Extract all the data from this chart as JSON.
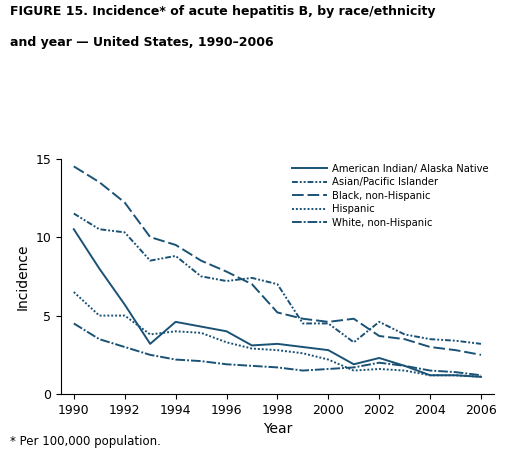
{
  "title_line1": "FIGURE 15. Incidence* of acute hepatitis B, by race/ethnicity",
  "title_line2": "and year — United States, 1990–2006",
  "footnote": "* Per 100,000 population.",
  "xlabel": "Year",
  "ylabel": "Incidence",
  "ylim": [
    0,
    15
  ],
  "yticks": [
    0,
    5,
    10,
    15
  ],
  "color": "#1a5276",
  "years": [
    1990,
    1991,
    1992,
    1993,
    1994,
    1995,
    1996,
    1997,
    1998,
    1999,
    2000,
    2001,
    2002,
    2003,
    2004,
    2005,
    2006
  ],
  "american_indian": [
    10.5,
    8.0,
    5.7,
    3.2,
    4.6,
    4.3,
    4.0,
    3.1,
    3.2,
    3.0,
    2.8,
    1.9,
    2.3,
    1.8,
    1.2,
    1.2,
    1.1
  ],
  "asian_pacific": [
    11.5,
    10.5,
    10.3,
    8.5,
    8.8,
    7.5,
    7.2,
    7.4,
    7.0,
    4.5,
    4.5,
    3.3,
    4.6,
    3.8,
    3.5,
    3.4,
    3.2
  ],
  "black": [
    14.5,
    13.5,
    12.2,
    10.0,
    9.5,
    8.5,
    7.8,
    7.0,
    5.2,
    4.8,
    4.6,
    4.8,
    3.7,
    3.5,
    3.0,
    2.8,
    2.5
  ],
  "hispanic": [
    6.5,
    5.0,
    5.0,
    3.8,
    4.0,
    3.9,
    3.3,
    2.9,
    2.8,
    2.6,
    2.2,
    1.5,
    1.6,
    1.5,
    1.2,
    1.2,
    1.1
  ],
  "white": [
    4.5,
    3.5,
    3.0,
    2.5,
    2.2,
    2.1,
    1.9,
    1.8,
    1.7,
    1.5,
    1.6,
    1.7,
    2.0,
    1.8,
    1.5,
    1.4,
    1.2
  ],
  "legend_labels": [
    "American Indian/ Alaska Native",
    "Asian/Pacific Islander",
    "Black, non-Hispanic",
    "Hispanic",
    "White, non-Hispanic"
  ],
  "xticks": [
    1990,
    1992,
    1994,
    1996,
    1998,
    2000,
    2002,
    2004,
    2006
  ]
}
